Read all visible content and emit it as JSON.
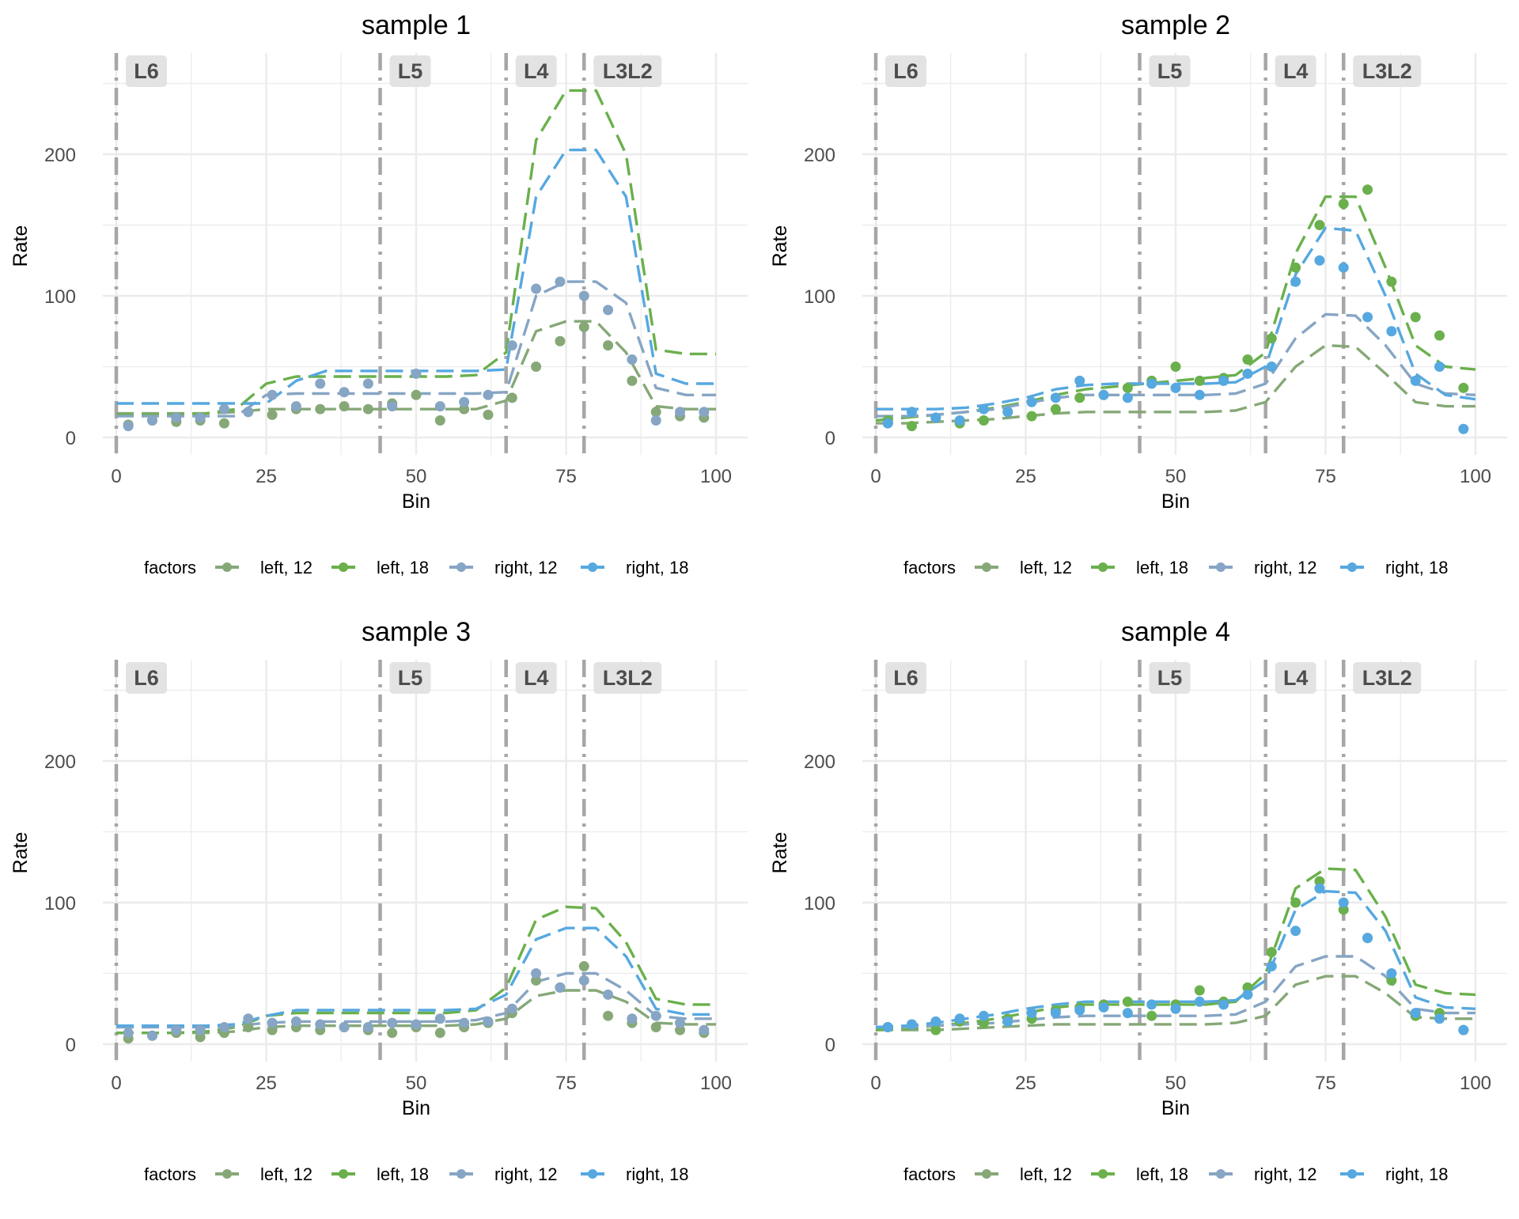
{
  "colors": {
    "left, 12": "#86a877",
    "left, 18": "#6ab04c",
    "right, 12": "#87a5c4",
    "right, 18": "#56a8e0",
    "layer_line": "#a6a6a6",
    "strip_bg": "#e3e3e3",
    "grid": "#ebebeb"
  },
  "chart_data": [
    {
      "type": "line",
      "title": "sample 1",
      "xlabel": "Bin",
      "ylabel": "Rate",
      "xlim": [
        0,
        100
      ],
      "ylim": [
        -10,
        260
      ],
      "xticks": [
        0,
        25,
        50,
        75,
        100
      ],
      "yticks": [
        0,
        100,
        200
      ],
      "grid": true,
      "layers": [
        {
          "label": "L6",
          "x": 0
        },
        {
          "label": "L5",
          "x": 44
        },
        {
          "label": "L4",
          "x": 65
        },
        {
          "label": "L3L2",
          "x": 78
        }
      ],
      "legend": {
        "title": "factors",
        "position": "bottom",
        "entries": [
          "left, 12",
          "left, 18",
          "right, 12",
          "right, 18"
        ]
      },
      "curve_x": [
        0,
        5,
        10,
        15,
        20,
        25,
        30,
        35,
        40,
        45,
        50,
        55,
        60,
        65,
        70,
        75,
        80,
        85,
        90,
        95,
        100
      ],
      "curves": [
        {
          "name": "left, 12",
          "values": [
            17,
            17,
            17,
            17,
            18,
            20,
            20,
            20,
            20,
            20,
            20,
            20,
            20,
            26,
            75,
            82,
            82,
            60,
            22,
            20,
            20
          ]
        },
        {
          "name": "left, 18",
          "values": [
            16,
            16,
            16,
            17,
            20,
            38,
            43,
            43,
            43,
            43,
            43,
            43,
            44,
            60,
            210,
            245,
            245,
            200,
            62,
            59,
            59
          ]
        },
        {
          "name": "right, 12",
          "values": [
            15,
            15,
            15,
            15,
            15,
            30,
            31,
            31,
            31,
            31,
            31,
            31,
            31,
            32,
            100,
            110,
            110,
            95,
            35,
            30,
            30
          ]
        },
        {
          "name": "right, 18",
          "values": [
            24,
            24,
            24,
            24,
            24,
            24,
            40,
            47,
            47,
            47,
            47,
            47,
            47,
            48,
            170,
            203,
            203,
            170,
            45,
            38,
            38
          ]
        }
      ],
      "points_x": [
        2,
        6,
        10,
        14,
        18,
        22,
        26,
        30,
        34,
        38,
        42,
        46,
        50,
        54,
        58,
        62,
        66,
        70,
        74,
        78,
        82,
        86,
        90,
        94,
        98
      ],
      "points": [
        {
          "name": "left, 12",
          "values": [
            9,
            12,
            11,
            12,
            10,
            18,
            16,
            20,
            20,
            22,
            20,
            24,
            30,
            12,
            20,
            16,
            28,
            50,
            68,
            78,
            65,
            40,
            18,
            15,
            14
          ]
        },
        {
          "name": "right, 12",
          "values": [
            8,
            12,
            14,
            14,
            20,
            18,
            30,
            22,
            38,
            32,
            38,
            22,
            45,
            22,
            25,
            30,
            65,
            105,
            110,
            100,
            90,
            55,
            12,
            18,
            18
          ]
        }
      ]
    },
    {
      "type": "line",
      "title": "sample 2",
      "xlabel": "Bin",
      "ylabel": "Rate",
      "xlim": [
        0,
        100
      ],
      "ylim": [
        -10,
        260
      ],
      "xticks": [
        0,
        25,
        50,
        75,
        100
      ],
      "yticks": [
        0,
        100,
        200
      ],
      "grid": true,
      "layers": [
        {
          "label": "L6",
          "x": 0
        },
        {
          "label": "L5",
          "x": 44
        },
        {
          "label": "L4",
          "x": 65
        },
        {
          "label": "L3L2",
          "x": 78
        }
      ],
      "legend": {
        "title": "factors",
        "position": "bottom",
        "entries": [
          "left, 12",
          "left, 18",
          "right, 12",
          "right, 18"
        ]
      },
      "curve_x": [
        0,
        5,
        10,
        15,
        20,
        25,
        30,
        35,
        40,
        45,
        50,
        55,
        60,
        65,
        70,
        75,
        80,
        85,
        90,
        95,
        100
      ],
      "curves": [
        {
          "name": "left, 12",
          "values": [
            10,
            10,
            11,
            12,
            13,
            15,
            17,
            18,
            18,
            18,
            18,
            18,
            19,
            25,
            50,
            65,
            64,
            45,
            25,
            22,
            22
          ]
        },
        {
          "name": "left, 18",
          "values": [
            12,
            14,
            16,
            18,
            21,
            25,
            30,
            34,
            36,
            38,
            40,
            42,
            44,
            60,
            130,
            170,
            170,
            120,
            65,
            50,
            48
          ]
        },
        {
          "name": "right, 12",
          "values": [
            15,
            15,
            16,
            18,
            20,
            24,
            28,
            30,
            30,
            30,
            30,
            30,
            31,
            38,
            70,
            87,
            86,
            65,
            38,
            31,
            30
          ]
        },
        {
          "name": "right, 18",
          "values": [
            20,
            20,
            20,
            21,
            24,
            28,
            34,
            37,
            38,
            38,
            38,
            38,
            39,
            50,
            115,
            148,
            146,
            100,
            45,
            30,
            27
          ]
        }
      ],
      "points_x": [
        2,
        6,
        10,
        14,
        18,
        22,
        26,
        30,
        34,
        38,
        42,
        46,
        50,
        54,
        58,
        62,
        66,
        70,
        74,
        78,
        82,
        86,
        90,
        94,
        98
      ],
      "points": [
        {
          "name": "left, 18",
          "values": [
            12,
            8,
            14,
            10,
            12,
            18,
            15,
            20,
            28,
            30,
            35,
            40,
            50,
            40,
            42,
            55,
            70,
            120,
            150,
            165,
            175,
            110,
            85,
            72,
            35
          ]
        },
        {
          "name": "right, 18",
          "values": [
            10,
            18,
            14,
            12,
            20,
            18,
            25,
            28,
            40,
            30,
            28,
            38,
            35,
            30,
            40,
            45,
            50,
            110,
            125,
            120,
            85,
            75,
            40,
            50,
            6
          ]
        }
      ]
    },
    {
      "type": "line",
      "title": "sample 3",
      "xlabel": "Bin",
      "ylabel": "Rate",
      "xlim": [
        0,
        100
      ],
      "ylim": [
        -10,
        260
      ],
      "xticks": [
        0,
        25,
        50,
        75,
        100
      ],
      "yticks": [
        0,
        100,
        200
      ],
      "grid": true,
      "layers": [
        {
          "label": "L6",
          "x": 0
        },
        {
          "label": "L5",
          "x": 44
        },
        {
          "label": "L4",
          "x": 65
        },
        {
          "label": "L3L2",
          "x": 78
        }
      ],
      "legend": {
        "title": "factors",
        "position": "bottom",
        "entries": [
          "left, 12",
          "left, 18",
          "right, 12",
          "right, 18"
        ]
      },
      "curve_x": [
        0,
        5,
        10,
        15,
        20,
        25,
        30,
        35,
        40,
        45,
        50,
        55,
        60,
        65,
        70,
        75,
        80,
        85,
        90,
        95,
        100
      ],
      "curves": [
        {
          "name": "left, 12",
          "values": [
            8,
            8,
            8,
            8,
            9,
            12,
            13,
            13,
            13,
            13,
            13,
            13,
            14,
            18,
            34,
            38,
            38,
            30,
            15,
            14,
            14
          ]
        },
        {
          "name": "left, 18",
          "values": [
            8,
            8,
            8,
            9,
            12,
            20,
            22,
            22,
            22,
            22,
            22,
            22,
            24,
            40,
            88,
            97,
            96,
            72,
            32,
            28,
            28
          ]
        },
        {
          "name": "right, 12",
          "values": [
            12,
            12,
            12,
            12,
            13,
            15,
            16,
            16,
            16,
            16,
            16,
            16,
            17,
            22,
            44,
            50,
            50,
            38,
            20,
            18,
            18
          ]
        },
        {
          "name": "right, 18",
          "values": [
            13,
            13,
            13,
            13,
            14,
            20,
            24,
            24,
            24,
            24,
            24,
            24,
            25,
            35,
            74,
            82,
            82,
            62,
            25,
            21,
            21
          ]
        }
      ],
      "points_x": [
        2,
        6,
        10,
        14,
        18,
        22,
        26,
        30,
        34,
        38,
        42,
        46,
        50,
        54,
        58,
        62,
        66,
        70,
        74,
        78,
        82,
        86,
        90,
        94,
        98
      ],
      "points": [
        {
          "name": "left, 12",
          "values": [
            4,
            6,
            8,
            5,
            8,
            12,
            10,
            12,
            10,
            12,
            10,
            8,
            12,
            8,
            12,
            15,
            22,
            45,
            40,
            55,
            20,
            15,
            12,
            10,
            8
          ]
        },
        {
          "name": "right, 12",
          "values": [
            8,
            6,
            10,
            10,
            12,
            18,
            15,
            16,
            14,
            12,
            12,
            15,
            14,
            18,
            15,
            16,
            25,
            50,
            40,
            45,
            35,
            18,
            20,
            15,
            10
          ]
        }
      ]
    },
    {
      "type": "line",
      "title": "sample 4",
      "xlabel": "Bin",
      "ylabel": "Rate",
      "xlim": [
        0,
        100
      ],
      "ylim": [
        -10,
        260
      ],
      "xticks": [
        0,
        25,
        50,
        75,
        100
      ],
      "yticks": [
        0,
        100,
        200
      ],
      "grid": true,
      "layers": [
        {
          "label": "L6",
          "x": 0
        },
        {
          "label": "L5",
          "x": 44
        },
        {
          "label": "L4",
          "x": 65
        },
        {
          "label": "L3L2",
          "x": 78
        }
      ],
      "legend": {
        "title": "factors",
        "position": "bottom",
        "entries": [
          "left, 12",
          "left, 18",
          "right, 12",
          "right, 18"
        ]
      },
      "curve_x": [
        0,
        5,
        10,
        15,
        20,
        25,
        30,
        35,
        40,
        45,
        50,
        55,
        60,
        65,
        70,
        75,
        80,
        85,
        90,
        95,
        100
      ],
      "curves": [
        {
          "name": "left, 12",
          "values": [
            10,
            10,
            10,
            11,
            12,
            13,
            14,
            14,
            14,
            14,
            14,
            14,
            15,
            20,
            42,
            48,
            48,
            36,
            19,
            18,
            18
          ]
        },
        {
          "name": "left, 18",
          "values": [
            10,
            11,
            13,
            15,
            18,
            22,
            26,
            28,
            28,
            28,
            28,
            28,
            30,
            50,
            110,
            124,
            123,
            90,
            42,
            36,
            35
          ]
        },
        {
          "name": "right, 12",
          "values": [
            12,
            12,
            13,
            14,
            15,
            17,
            19,
            20,
            20,
            20,
            20,
            20,
            21,
            30,
            55,
            62,
            62,
            48,
            25,
            22,
            22
          ]
        },
        {
          "name": "right, 18",
          "values": [
            12,
            13,
            15,
            18,
            21,
            25,
            28,
            30,
            30,
            30,
            30,
            30,
            31,
            45,
            95,
            108,
            107,
            80,
            33,
            26,
            25
          ]
        }
      ],
      "points_x": [
        2,
        6,
        10,
        14,
        18,
        22,
        26,
        30,
        34,
        38,
        42,
        46,
        50,
        54,
        58,
        62,
        66,
        70,
        74,
        78,
        82,
        86,
        90,
        94,
        98
      ],
      "points": [
        {
          "name": "left, 18",
          "values": [
            12,
            14,
            10,
            16,
            15,
            18,
            18,
            24,
            26,
            28,
            30,
            20,
            28,
            38,
            30,
            40,
            65,
            100,
            115,
            95,
            75,
            45,
            20,
            22,
            10
          ]
        },
        {
          "name": "right, 18",
          "values": [
            12,
            14,
            16,
            18,
            20,
            16,
            22,
            22,
            24,
            26,
            22,
            28,
            25,
            30,
            28,
            35,
            55,
            80,
            110,
            100,
            75,
            50,
            22,
            18,
            10
          ]
        }
      ]
    }
  ]
}
